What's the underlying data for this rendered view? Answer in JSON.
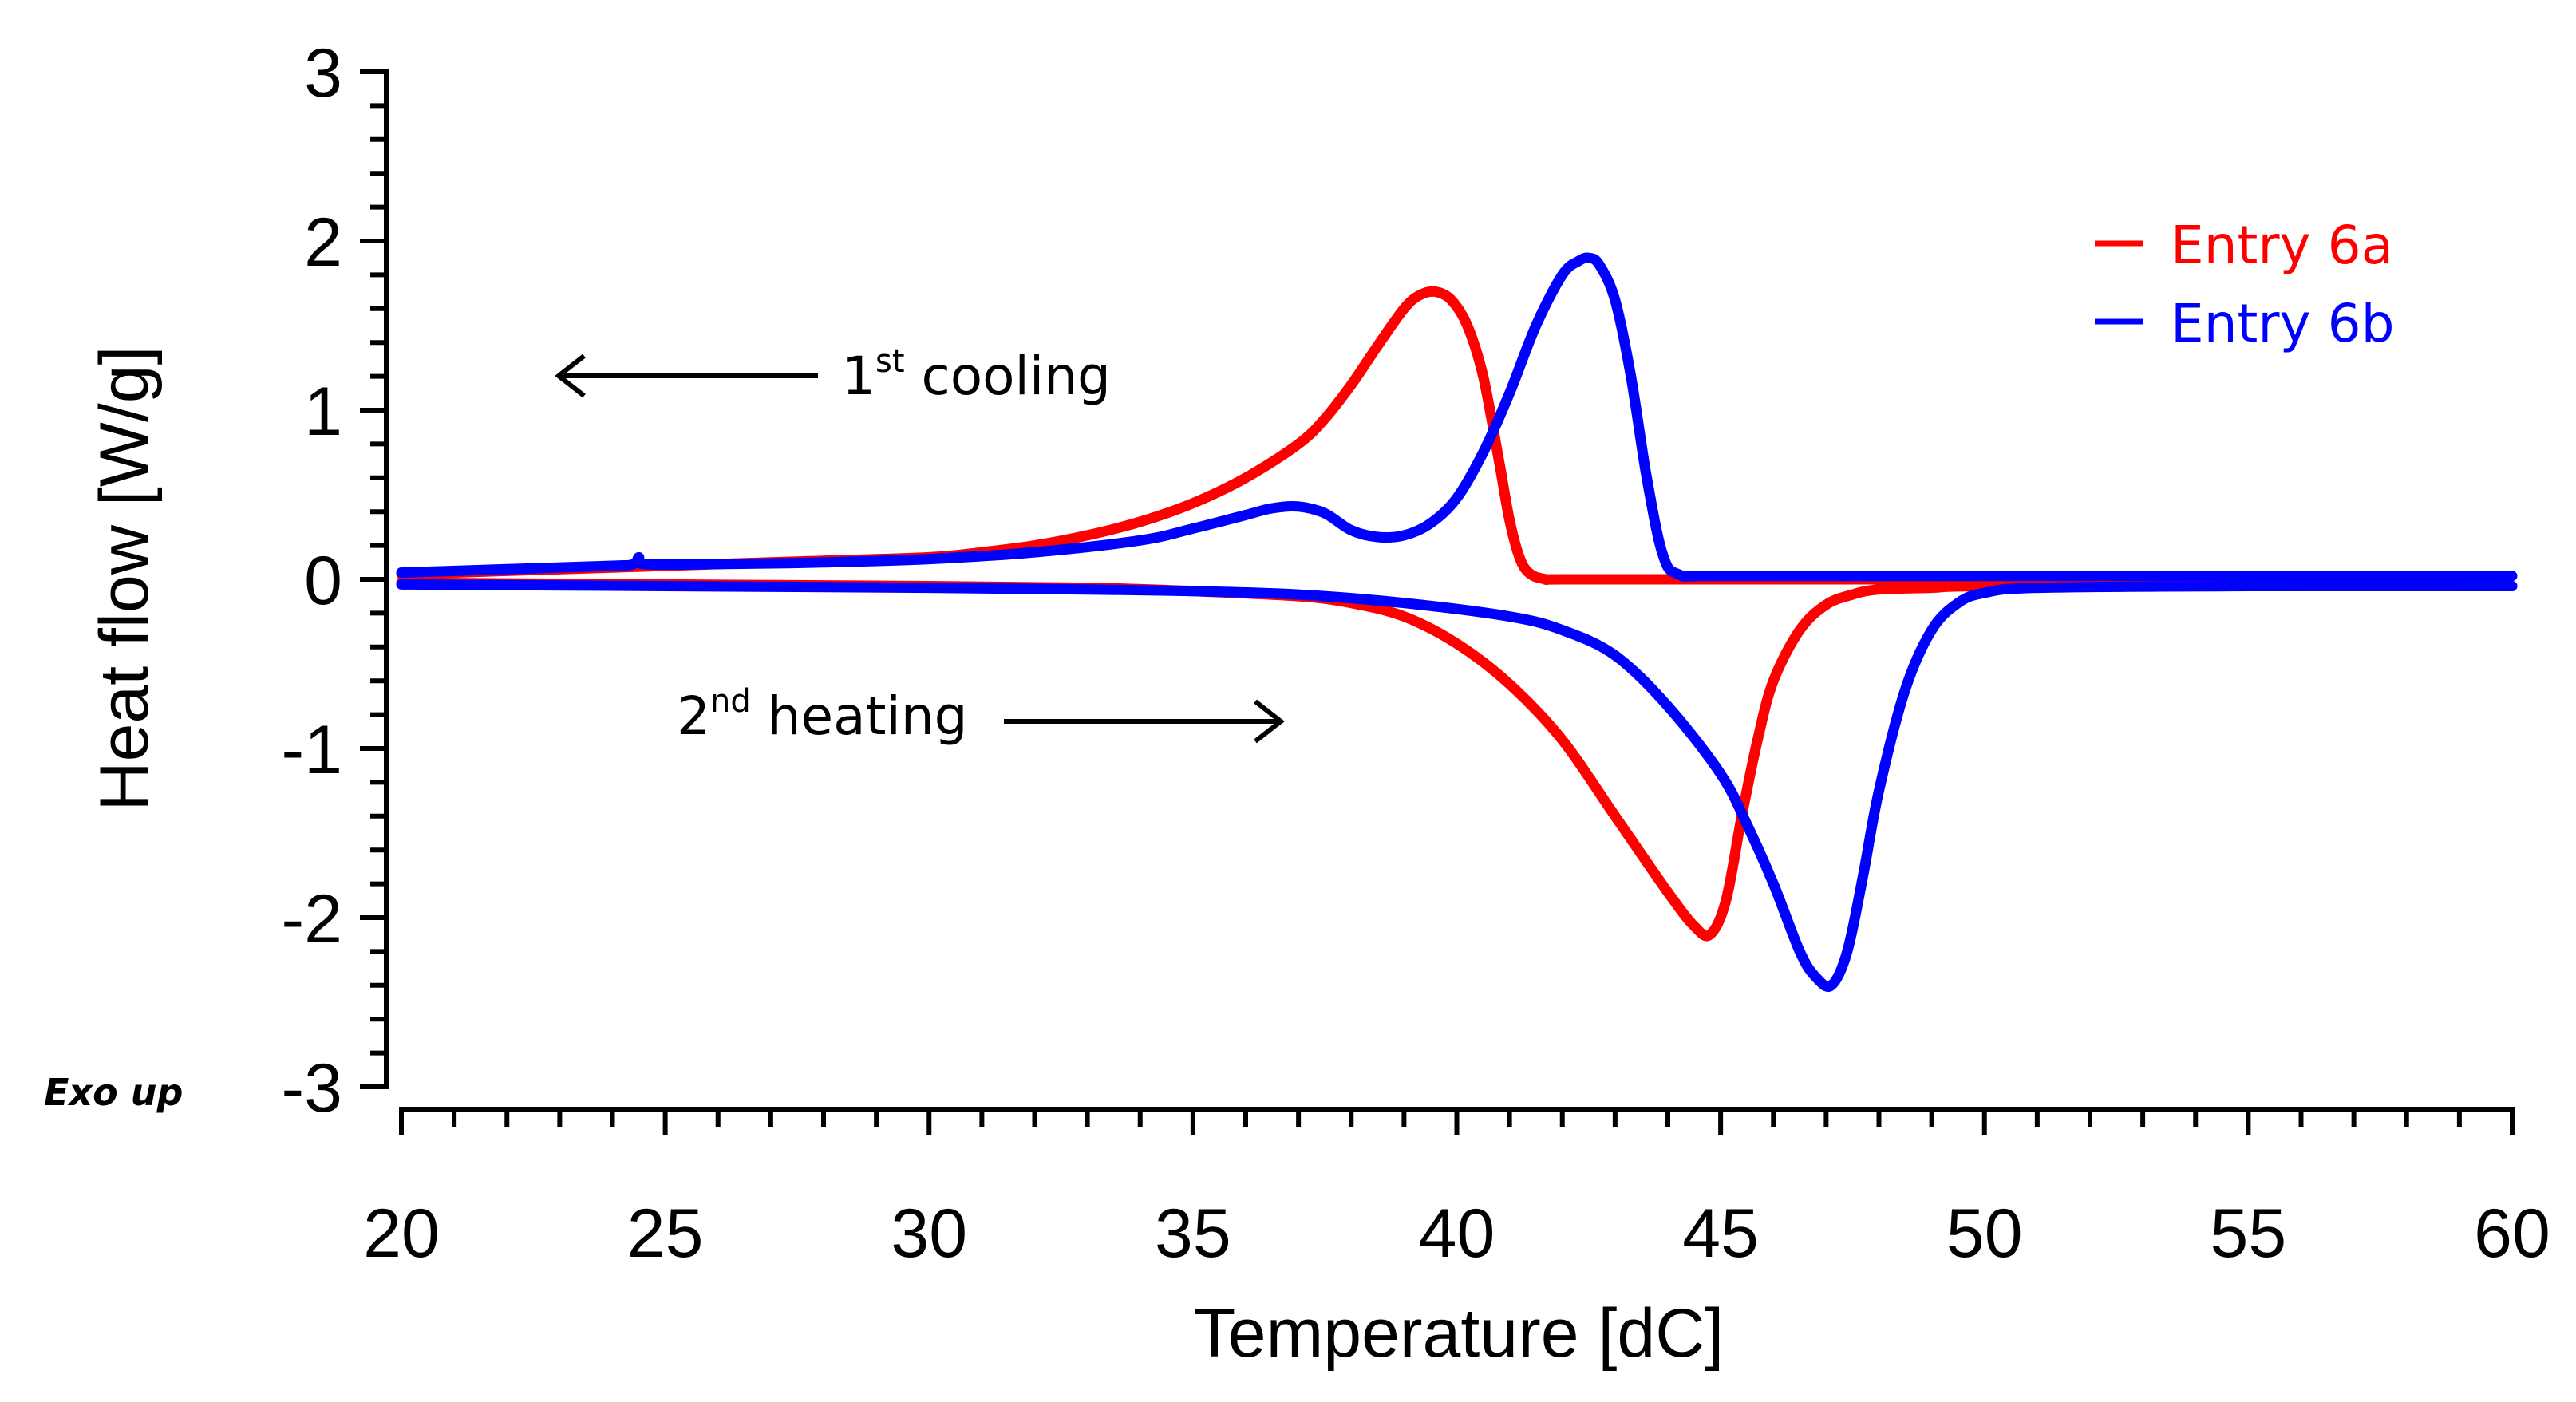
{
  "chart_data": {
    "type": "line",
    "title": "",
    "xlabel": "Temperature [dC]",
    "ylabel": "Heat flow [W/g]",
    "xlim": [
      20,
      60
    ],
    "ylim": [
      -3,
      3
    ],
    "x_ticks": [
      "20",
      "25",
      "30",
      "35",
      "40",
      "45",
      "50",
      "55",
      "60"
    ],
    "y_ticks": [
      "3",
      "2",
      "1",
      "0",
      "-1",
      "-2",
      "-3"
    ],
    "x_tick_values": [
      20,
      25,
      30,
      35,
      40,
      45,
      50,
      55,
      60
    ],
    "y_tick_values": [
      3,
      2,
      1,
      0,
      -1,
      -2,
      -3
    ],
    "legend": {
      "position": "top-right"
    },
    "annotations": {
      "exo_label": "Exo up",
      "cooling": {
        "pre": "1",
        "sup": "st",
        "post": " cooling",
        "direction": "left"
      },
      "heating": {
        "pre": "2",
        "sup": "nd",
        "post": " heating",
        "direction": "right"
      }
    },
    "series": [
      {
        "name": "Entry 6a",
        "color": "#ff0000",
        "segments": [
          {
            "label": "1st cooling",
            "x": [
              20,
              22,
              24,
              26,
              28,
              30,
              31,
              32,
              33,
              34,
              35,
              36,
              37,
              37.5,
              38,
              38.5,
              39,
              39.3,
              39.6,
              39.9,
              40.2,
              40.5,
              40.8,
              41.0,
              41.2,
              41.4,
              41.7,
              42,
              45,
              50,
              52
            ],
            "y": [
              0.03,
              0.05,
              0.07,
              0.09,
              0.11,
              0.13,
              0.16,
              0.2,
              0.26,
              0.34,
              0.45,
              0.6,
              0.8,
              0.95,
              1.15,
              1.38,
              1.6,
              1.68,
              1.7,
              1.65,
              1.5,
              1.2,
              0.7,
              0.35,
              0.12,
              0.03,
              0.0,
              0.0,
              0.0,
              0.0,
              0.0
            ]
          },
          {
            "label": "2nd heating",
            "x": [
              20,
              25,
              30,
              33,
              35,
              37,
              38,
              39,
              40,
              41,
              42,
              43,
              44,
              44.5,
              44.8,
              45.1,
              45.4,
              45.7,
              46,
              46.5,
              47,
              47.5,
              48,
              49,
              50,
              55,
              60
            ],
            "y": [
              -0.02,
              -0.03,
              -0.04,
              -0.05,
              -0.07,
              -0.1,
              -0.14,
              -0.22,
              -0.38,
              -0.62,
              -0.95,
              -1.4,
              -1.85,
              -2.05,
              -2.1,
              -1.9,
              -1.4,
              -0.95,
              -0.6,
              -0.3,
              -0.15,
              -0.09,
              -0.06,
              -0.05,
              -0.04,
              -0.04,
              -0.04
            ]
          }
        ]
      },
      {
        "name": "Entry 6b",
        "color": "#0000ff",
        "segments": [
          {
            "label": "1st cooling",
            "x": [
              20,
              22,
              24,
              24.4,
              24.5,
              24.6,
              26,
              28,
              30,
              32,
              34,
              35,
              36,
              36.5,
              37,
              37.5,
              38,
              38.5,
              39,
              39.5,
              40,
              40.5,
              41,
              41.5,
              42,
              42.3,
              42.5,
              42.7,
              43,
              43.3,
              43.6,
              43.9,
              44.2,
              45,
              50,
              55,
              60
            ],
            "y": [
              0.04,
              0.06,
              0.08,
              0.09,
              0.13,
              0.09,
              0.09,
              0.1,
              0.12,
              0.16,
              0.23,
              0.3,
              0.38,
              0.42,
              0.43,
              0.39,
              0.29,
              0.25,
              0.26,
              0.33,
              0.48,
              0.75,
              1.1,
              1.5,
              1.8,
              1.88,
              1.9,
              1.86,
              1.65,
              1.2,
              0.6,
              0.15,
              0.03,
              0.02,
              0.02,
              0.02,
              0.02
            ]
          },
          {
            "label": "2nd heating",
            "x": [
              20,
              25,
              30,
              33,
              35,
              37,
              39,
              41,
              42,
              43,
              44,
              45,
              45.5,
              46,
              46.5,
              46.8,
              47.1,
              47.4,
              47.7,
              48,
              48.5,
              49,
              49.5,
              50,
              51,
              55,
              60
            ],
            "y": [
              -0.03,
              -0.04,
              -0.05,
              -0.06,
              -0.07,
              -0.09,
              -0.14,
              -0.22,
              -0.3,
              -0.45,
              -0.75,
              -1.15,
              -1.45,
              -1.8,
              -2.2,
              -2.35,
              -2.4,
              -2.2,
              -1.75,
              -1.25,
              -0.65,
              -0.3,
              -0.14,
              -0.08,
              -0.05,
              -0.04,
              -0.04
            ]
          }
        ]
      }
    ]
  }
}
